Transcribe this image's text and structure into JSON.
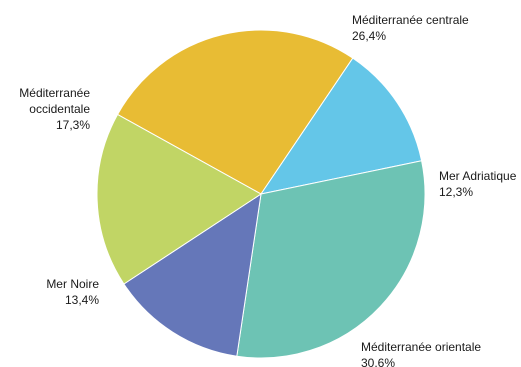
{
  "chart_data": {
    "type": "pie",
    "slices": [
      {
        "name": "Méditerranée centrale",
        "value": 26.4,
        "value_label": "26,4%",
        "color": "#e8bc34"
      },
      {
        "name": "Mer Adriatique",
        "value": 12.3,
        "value_label": "12,3%",
        "color": "#64c6e8"
      },
      {
        "name": "Méditerranée orientale",
        "value": 30.6,
        "value_label": "30.6%",
        "color": "#6dc3b4"
      },
      {
        "name": "Mer Noire",
        "value": 13.4,
        "value_label": "13,4%",
        "color": "#6577b9"
      },
      {
        "name": "Méditerranée occidentale",
        "value": 17.3,
        "value_label": "17,3%",
        "color": "#c1d565"
      }
    ],
    "label_lines": [
      [
        "Méditerranée centrale",
        "26,4%"
      ],
      [
        "Mer Adriatique",
        "12,3%"
      ],
      [
        "Méditerranée orientale",
        "30.6%"
      ],
      [
        "Mer Noire",
        "13,4%"
      ],
      [
        "Méditerranée",
        "occidentale",
        "17,3%"
      ]
    ]
  }
}
